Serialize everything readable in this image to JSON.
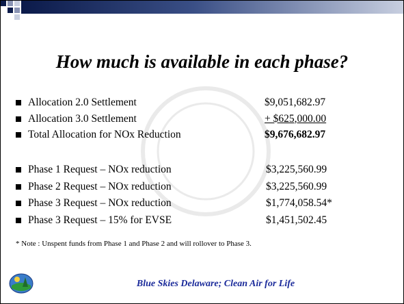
{
  "title": "How much is available in each phase?",
  "groups": [
    {
      "items": [
        {
          "label": "Allocation 2.0 Settlement",
          "amount": "$9,051,682.97"
        },
        {
          "label": "Allocation 3.0 Settlement",
          "amount": "+  $625,000.00"
        },
        {
          "label": "Total Allocation for NOx Reduction",
          "amount": "$9,676,682.97"
        }
      ]
    },
    {
      "items": [
        {
          "label": "Phase 1 Request – NOx reduction",
          "amount": "$3,225,560.99"
        },
        {
          "label": "Phase 2 Request – NOx reduction",
          "amount": "$3,225,560.99"
        },
        {
          "label": "Phase 3 Request – NOx reduction",
          "amount": "$1,774,058.54*"
        },
        {
          "label": "Phase 3 Request  – 15%  for EVSE",
          "amount": "$1,451,502.45"
        }
      ]
    }
  ],
  "note": "* Note :  Unspent funds from Phase 1 and Phase 2 and will rollover to Phase 3.",
  "footer": "Blue Skies Delaware; Clean Air for Life"
}
